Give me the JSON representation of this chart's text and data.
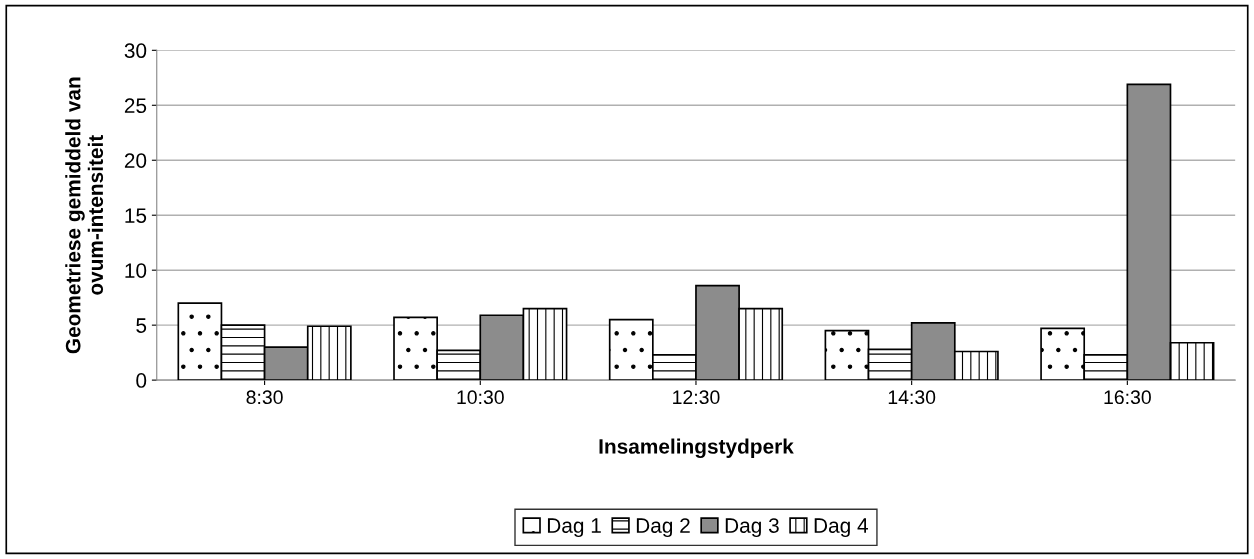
{
  "chart_data": {
    "type": "bar",
    "xlabel": "Insamelingstydperk",
    "ylabel": "Geometriese gemiddeld van\novum-intensiteit",
    "categories": [
      "8:30",
      "10:30",
      "12:30",
      "14:30",
      "16:30"
    ],
    "series": [
      {
        "name": "Dag 1",
        "color": "#ffffff",
        "values": [
          7.0,
          5.7,
          5.5,
          4.5,
          4.7
        ]
      },
      {
        "name": "Dag 2",
        "color": "#ffffff",
        "values": [
          5.0,
          2.7,
          2.3,
          2.8,
          2.3
        ]
      },
      {
        "name": "Dag 3",
        "color": "#8c8c8c",
        "values": [
          3.0,
          5.9,
          8.6,
          5.2,
          26.9
        ]
      },
      {
        "name": "Dag 4",
        "color": "#ffffff",
        "values": [
          4.9,
          6.5,
          6.5,
          2.6,
          3.4
        ]
      }
    ],
    "ylim": [
      0,
      30
    ],
    "yticks": [
      0,
      5,
      10,
      15,
      20,
      25,
      30
    ],
    "grid": "y",
    "legend": "bottom"
  }
}
